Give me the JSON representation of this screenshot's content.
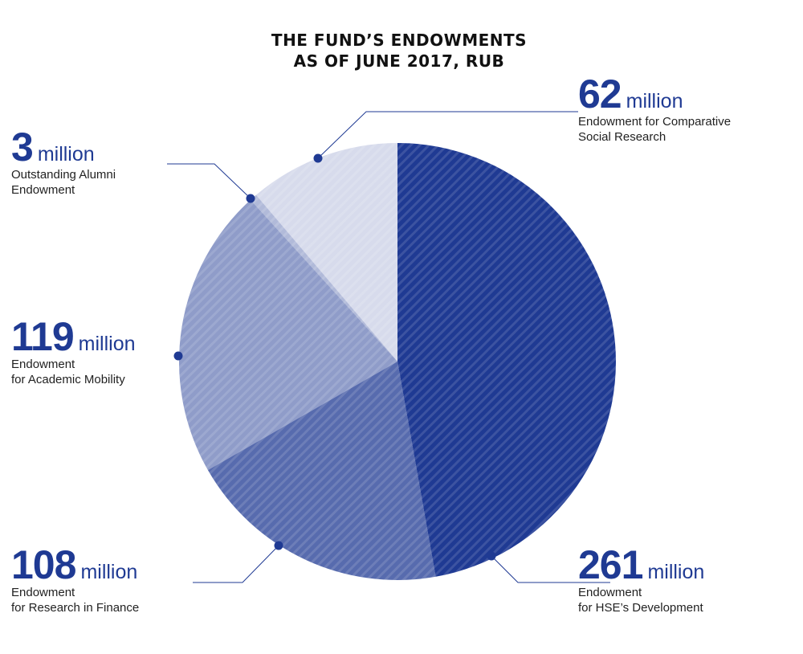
{
  "chart_data": {
    "type": "pie",
    "title": [
      "THE FUND’S ENDOWMENTS",
      "AS OF JUNE 2017, RUB"
    ],
    "unit": "million",
    "slices": [
      {
        "value": 261,
        "label": [
          "Endowment",
          "for HSE’s Development"
        ],
        "color": "#1f3a93",
        "opacity": 1.0
      },
      {
        "value": 108,
        "label": [
          "Endowment",
          "for Research in Finance"
        ],
        "color": "#1f3a93",
        "opacity": 0.75
      },
      {
        "value": 119,
        "label": [
          "Endowment",
          "for Academic Mobility"
        ],
        "color": "#1f3a93",
        "opacity": 0.5
      },
      {
        "value": 3,
        "label": [
          "Outstanding Alumni",
          "Endowment"
        ],
        "color": "#1f3a93",
        "opacity": 0.35
      },
      {
        "value": 62,
        "label": [
          "Endowment for Comparative",
          "Social Research"
        ],
        "color": "#1f3a93",
        "opacity": 0.18
      }
    ],
    "accent_color": "#1f3a93"
  }
}
